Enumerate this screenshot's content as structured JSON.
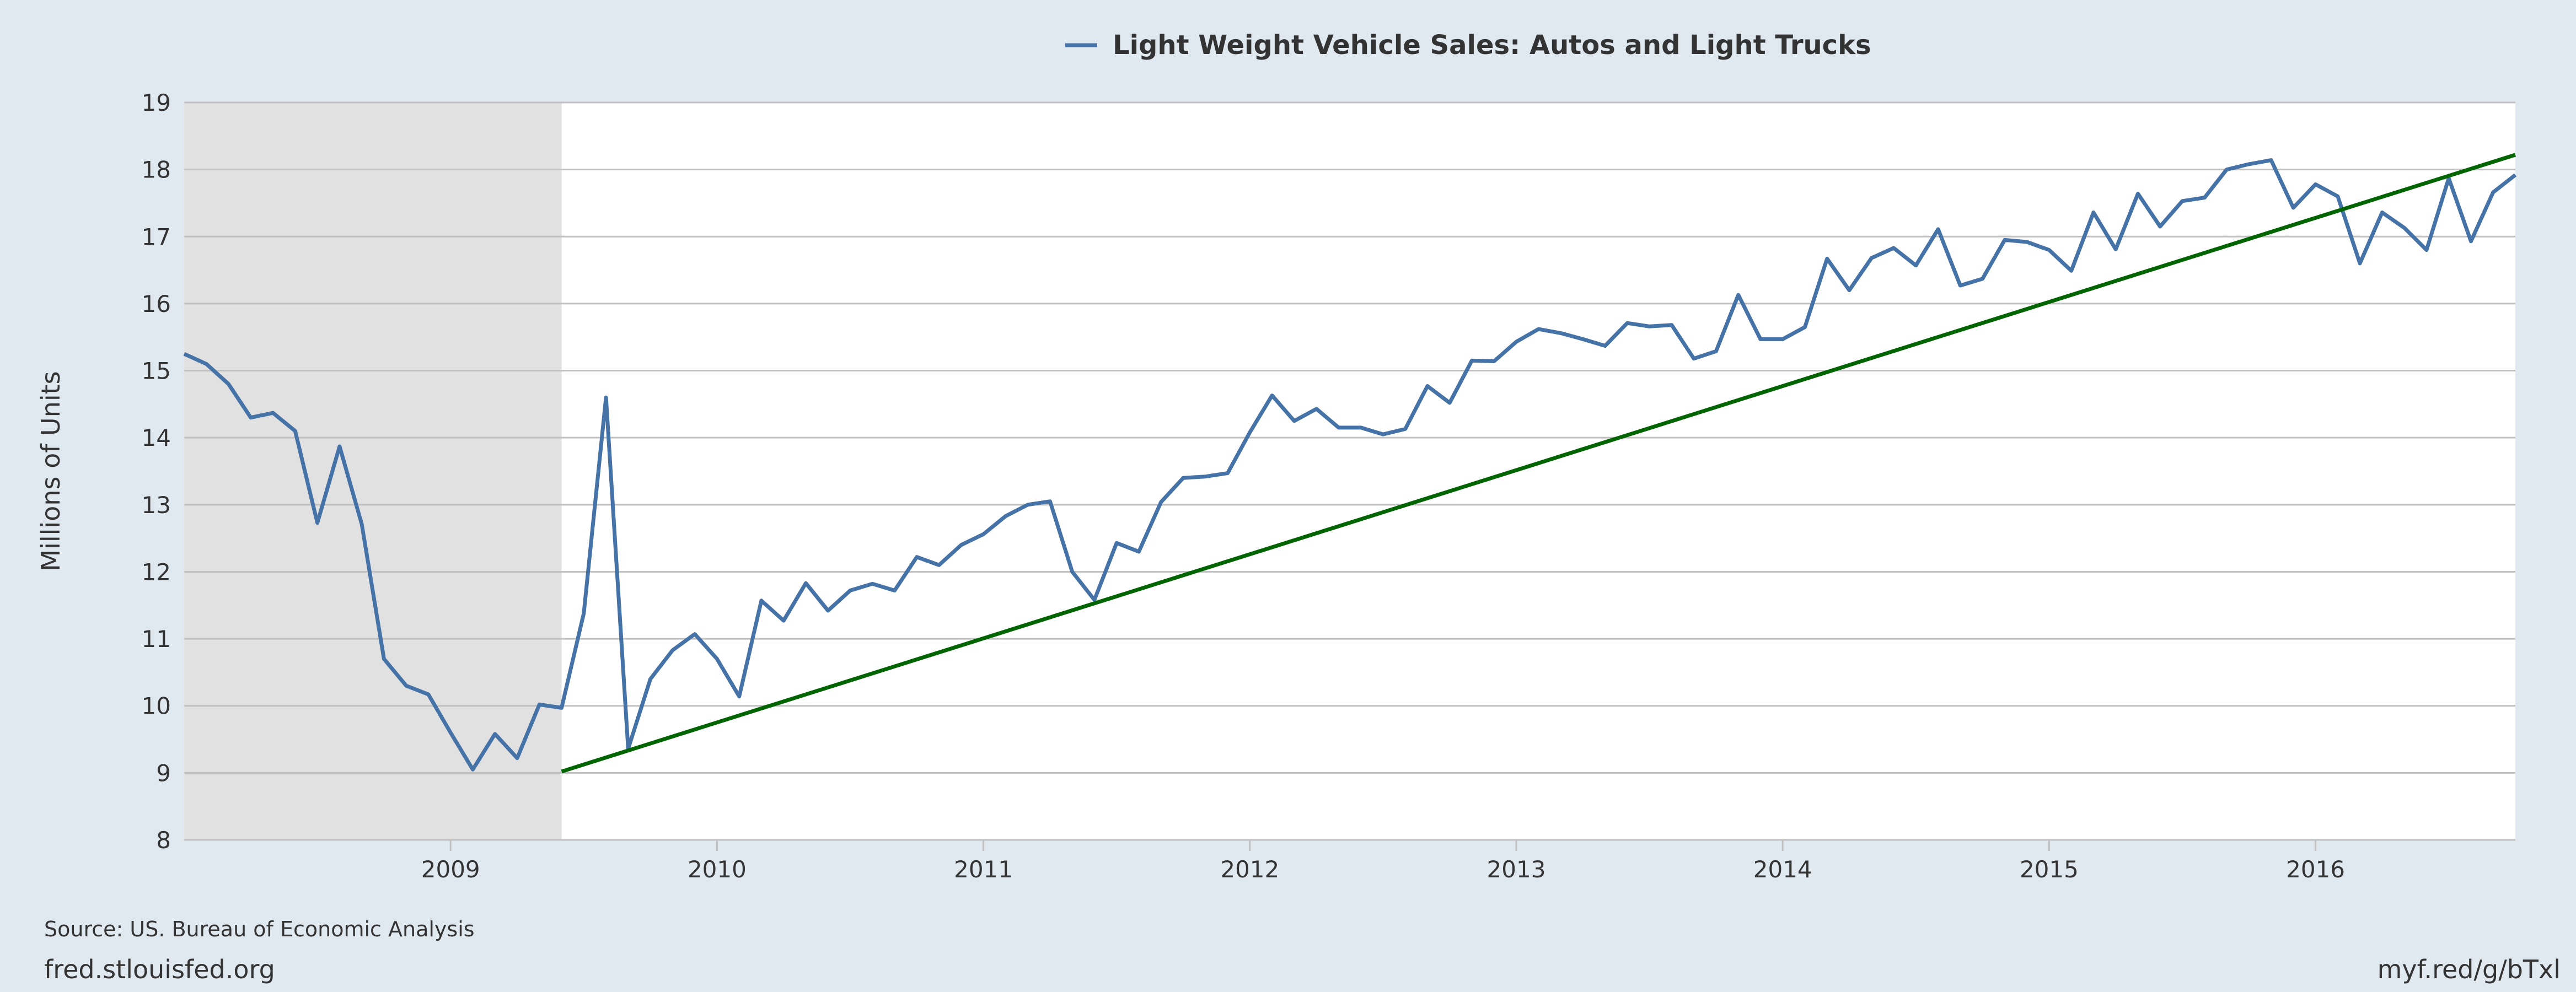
{
  "chart_data": {
    "type": "line",
    "legend": "Light Weight Vehicle Sales: Autos and Light Trucks",
    "legend_position": "top-center",
    "ylabel": "Millions of Units",
    "yticks": [
      "8",
      "9",
      "10",
      "11",
      "12",
      "13",
      "14",
      "15",
      "16",
      "17",
      "18",
      "19"
    ],
    "ylim": [
      8,
      19
    ],
    "xlim": [
      "2008-01",
      "2016-10"
    ],
    "xticks": [
      "2009",
      "2010",
      "2011",
      "2012",
      "2013",
      "2014",
      "2015",
      "2016"
    ],
    "grid": "horizontal",
    "recession_shading": {
      "start": "2008-01",
      "end": "2009-06"
    },
    "series": [
      {
        "name": "Light Weight Vehicle Sales: Autos and Light Trucks",
        "color": "#4572a7",
        "start": "2008-01",
        "frequency": "monthly",
        "values": [
          15.25,
          15.1,
          14.8,
          14.3,
          14.37,
          14.1,
          12.73,
          13.87,
          12.71,
          10.7,
          10.3,
          10.17,
          9.6,
          9.05,
          9.58,
          9.22,
          10.02,
          9.97,
          11.38,
          14.6,
          9.36,
          10.4,
          10.83,
          11.07,
          10.7,
          10.14,
          11.57,
          11.27,
          11.83,
          11.42,
          11.72,
          11.82,
          11.72,
          12.22,
          12.1,
          12.4,
          12.56,
          12.83,
          13.0,
          13.05,
          12.0,
          11.58,
          12.43,
          12.3,
          13.04,
          13.4,
          13.42,
          13.47,
          14.08,
          14.63,
          14.25,
          14.43,
          14.15,
          14.15,
          14.05,
          14.13,
          14.77,
          14.52,
          15.15,
          15.14,
          15.43,
          15.62,
          15.56,
          15.47,
          15.37,
          15.71,
          15.66,
          15.68,
          15.18,
          15.29,
          16.13,
          15.47,
          15.47,
          15.65,
          16.67,
          16.2,
          16.68,
          16.83,
          16.57,
          17.11,
          16.27,
          16.37,
          16.95,
          16.92,
          16.8,
          16.49,
          17.36,
          16.81,
          17.64,
          17.15,
          17.53,
          17.58,
          18.0,
          18.08,
          18.14,
          17.43,
          17.78,
          17.6,
          16.6,
          17.36,
          17.13,
          16.8,
          17.87,
          16.93,
          17.66,
          17.92
        ]
      },
      {
        "name": "",
        "color": "#006400",
        "x": [
          "2009-06",
          "2016-10"
        ],
        "values": [
          9.02,
          18.22
        ]
      }
    ]
  },
  "footer": {
    "source": "Source: US. Bureau of Economic Analysis",
    "site": "fred.stlouisfed.org",
    "shortlink": "myf.red/g/bTxl"
  }
}
